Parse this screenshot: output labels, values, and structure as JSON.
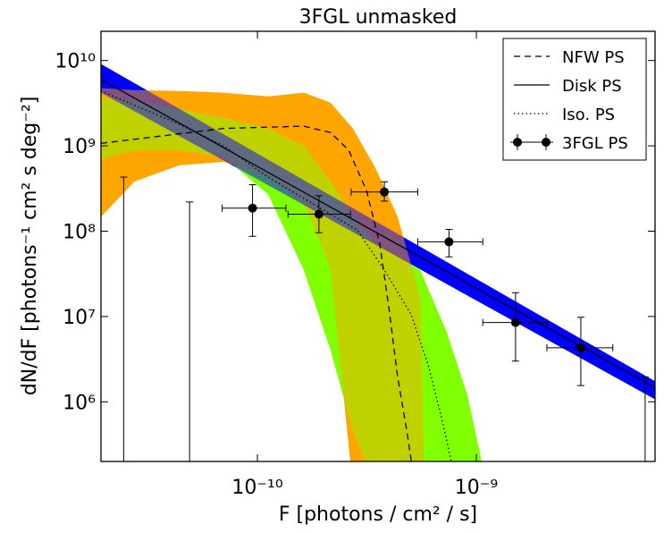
{
  "chart_data": {
    "type": "line",
    "title": "3FGL unmasked",
    "x_label": "F  [photons / cm²  / s]",
    "y_label": "dN/dF  [photons⁻¹ cm² s deg⁻²]",
    "log_x": true,
    "log_y": true,
    "xlim": [
      1.93e-11,
      6.55e-09
    ],
    "ylim": [
      200000.0,
      22000000000.0
    ],
    "xticks": [
      {
        "value": 1e-10,
        "label": "10⁻¹⁰"
      },
      {
        "value": 1e-09,
        "label": "10⁻⁹"
      }
    ],
    "yticks": [
      {
        "value": 1000000.0,
        "label": "10⁶"
      },
      {
        "value": 10000000.0,
        "label": "10⁷"
      },
      {
        "value": 100000000.0,
        "label": "10⁸"
      },
      {
        "value": 1000000000.0,
        "label": "10⁹"
      },
      {
        "value": 10000000000.0,
        "label": "10¹⁰"
      }
    ],
    "legend": "upper right",
    "series": [
      {
        "kind": "band",
        "color": "#7fff00",
        "x": [
          1.93e-11,
          2.74e-11,
          4.37e-11,
          7e-11,
          1.12e-10,
          1.63e-10,
          2.16e-10,
          2.73e-10,
          3.46e-10,
          4.37e-10,
          5.54e-10,
          7.33e-10,
          9.1e-10,
          1.12e-09
        ],
        "upper": [
          3700000000.0,
          3300000000.0,
          2700000000.0,
          2150000000.0,
          1600000000.0,
          1000000000.0,
          380000000.0,
          147000000.0,
          71000000.0,
          50000000.0,
          35000000.0,
          6500000.0,
          1200000.0,
          100000.0
        ],
        "lower": [
          700000000.0,
          890000000.0,
          890000000.0,
          750000000.0,
          270000000.0,
          35000000.0,
          4000000.0,
          460000.0,
          100000.0,
          100000.0,
          100000.0,
          100000.0,
          100000.0,
          100000.0
        ]
      },
      {
        "kind": "band",
        "color": "#ffa500",
        "x": [
          1.93e-11,
          2.74e-11,
          4.37e-11,
          7e-11,
          1.12e-10,
          1.63e-10,
          2.16e-10,
          2.73e-10,
          3.46e-10,
          4.37e-10,
          5.54e-10,
          5.8e-10
        ],
        "upper": [
          4750000000.0,
          4500000000.0,
          4400000000.0,
          4200000000.0,
          3800000000.0,
          4200000000.0,
          3200000000.0,
          1600000000.0,
          550000000.0,
          147000000.0,
          17000000.0,
          100000.0
        ],
        "lower": [
          147000000.0,
          380000000.0,
          590000000.0,
          650000000.0,
          430000000.0,
          210000000.0,
          35000000.0,
          100000.0,
          100000.0,
          100000.0,
          100000.0,
          100000.0
        ]
      },
      {
        "kind": "band",
        "color": "#0000ff",
        "x": [
          1.93e-11,
          6.55e-09
        ],
        "upper": [
          9100000000.0,
          1740000.0
        ],
        "lower": [
          4200000000.0,
          1070000.0
        ]
      },
      {
        "kind": "line",
        "name": "NFW PS",
        "color": "#000000",
        "dash": "dashed",
        "x": [
          1.93e-11,
          7e-11,
          1.63e-10,
          2.16e-10,
          2.61e-10,
          3.15e-10,
          3.62e-10,
          3.98e-10,
          4.37e-10,
          4.81e-10,
          5.13e-10
        ],
        "values": [
          1070000000.0,
          1600000000.0,
          1700000000.0,
          1430000000.0,
          890000000.0,
          300000000.0,
          71000000.0,
          13000000.0,
          1950000.0,
          460000.0,
          150000.0
        ]
      },
      {
        "kind": "line",
        "name": "Disk PS",
        "color": "#000000",
        "dash": "solid",
        "x": [
          1.93e-11,
          6.55e-09
        ],
        "values": [
          6000000000.0,
          1470000.0
        ]
      },
      {
        "kind": "line",
        "name": "Iso. PS",
        "color": "#000000",
        "dash": "dotted",
        "x": [
          1.93e-11,
          4.37e-11,
          7e-11,
          1.12e-10,
          1.79e-10,
          2.86e-10,
          3.8e-10,
          5.04e-10,
          6.08e-10,
          7e-10,
          7.69e-10
        ],
        "values": [
          4400000000.0,
          1800000000.0,
          1000000000.0,
          430000000.0,
          210000000.0,
          103000000.0,
          35000000.0,
          10500000.0,
          2500000.0,
          590000.0,
          196000.0
        ]
      },
      {
        "kind": "errorbar",
        "name": "3FGL PS",
        "color": "#000000",
        "x": [
          2.45e-11,
          4.9e-11,
          9.5e-11,
          1.91e-10,
          3.8e-10,
          7.5e-10,
          1.51e-09,
          3e-09,
          5.9e-09
        ],
        "values": [
          null,
          null,
          186000000.0,
          158000000.0,
          288000000.0,
          75000000.0,
          8500000.0,
          4300000.0,
          null
        ],
        "x_low": [
          null,
          null,
          6.9e-11,
          1.38e-10,
          2.68e-10,
          5.4e-10,
          1.07e-09,
          2.1e-09,
          null
        ],
        "x_high": [
          null,
          null,
          1.35e-10,
          2.66e-10,
          5.4e-10,
          1.07e-09,
          2.1e-09,
          4.2e-09,
          null
        ],
        "y_low": [
          null,
          null,
          87000000.0,
          96000000.0,
          225000000.0,
          50000000.0,
          3000000.0,
          1550000.0,
          null
        ],
        "y_high": [
          430000000.0,
          220000000.0,
          350000000.0,
          260000000.0,
          380000000.0,
          105000000.0,
          19000000.0,
          9800000.0,
          1950000.0
        ]
      }
    ]
  }
}
